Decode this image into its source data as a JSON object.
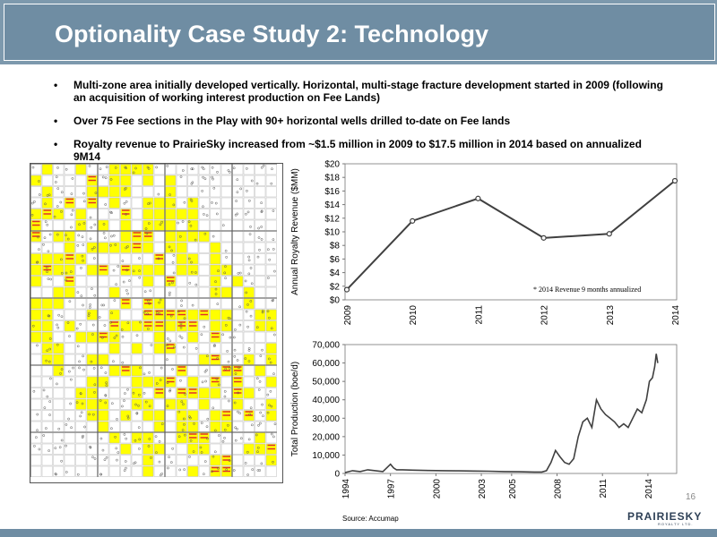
{
  "slide": {
    "title": "Optionality Case Study 2: Technology",
    "bullets": [
      "Multi-zone area initially developed vertically. Horizontal, multi-stage fracture development started in 2009 (following an acquisition of working interest production on Fee Lands)",
      "Over 75 Fee sections in the Play with 90+ horizontal wells drilled to-date on Fee lands",
      "Royalty revenue to PrairieSky increased from ~$1.5 million in 2009 to $17.5 million in 2014 based on annualized 9M14"
    ],
    "page_number": "16",
    "source": "Source: Accumap",
    "logo_text": "PRAIRIESKY",
    "logo_subtext": "ROYALTY LTD."
  },
  "colors": {
    "title_bar": "#6f8da3",
    "fee_land": "#ffff00",
    "hz_wells": "#e0302a",
    "line": "#404040"
  },
  "map": {
    "description_icons": [
      "well-symbol-icon",
      "section-grid-icon"
    ]
  },
  "chart_data": [
    {
      "type": "line",
      "x": [
        "2009",
        "2010",
        "2011",
        "2012",
        "2013",
        "2014"
      ],
      "series": [
        {
          "values": [
            1.5,
            11.6,
            14.9,
            9.1,
            9.7,
            17.5
          ]
        }
      ],
      "ylabel": "Annual Royalty Revenue ($MM)",
      "xlabel": "",
      "ylim": [
        0,
        20
      ],
      "yticks": [
        "$0",
        "$2",
        "$4",
        "$6",
        "$8",
        "$10",
        "$12",
        "$14",
        "$16",
        "$18",
        "$20"
      ],
      "annotation": "* 2014 Revenue 9 months annualized",
      "grid": false
    },
    {
      "type": "line",
      "xticks": [
        "1994",
        "1997",
        "2000",
        "2003",
        "2005",
        "2008",
        "2011",
        "2014"
      ],
      "x": [
        1994.0,
        1994.5,
        1995.0,
        1995.5,
        1996.0,
        1996.5,
        1997.0,
        1997.2,
        1997.4,
        1997.8,
        1998.5,
        1999.5,
        2000.5,
        2001.5,
        2002.5,
        2003.5,
        2004.5,
        2005.5,
        2006.5,
        2007.0,
        2007.3,
        2007.6,
        2007.9,
        2008.2,
        2008.5,
        2008.8,
        2009.1,
        2009.4,
        2009.7,
        2010.0,
        2010.3,
        2010.6,
        2010.9,
        2011.2,
        2011.5,
        2011.8,
        2012.1,
        2012.4,
        2012.7,
        2013.0,
        2013.3,
        2013.6,
        2013.9,
        2014.1,
        2014.3,
        2014.45,
        2014.55,
        2014.65
      ],
      "series": [
        {
          "values": [
            500,
            1500,
            1000,
            2000,
            1500,
            1000,
            5000,
            3000,
            2000,
            2000,
            1800,
            1600,
            1500,
            1400,
            1300,
            1200,
            1000,
            900,
            800,
            800,
            1500,
            6000,
            12500,
            9000,
            6000,
            5000,
            8000,
            20000,
            28000,
            30000,
            25000,
            40000,
            35000,
            32000,
            30000,
            28000,
            25000,
            27000,
            25000,
            30000,
            35000,
            33000,
            40000,
            50000,
            52000,
            58000,
            65000,
            60000
          ]
        }
      ],
      "ylabel": "Total Production (boe/d)",
      "xlabel": "",
      "ylim": [
        0,
        70000
      ],
      "yticks": [
        "0",
        "10,000",
        "20,000",
        "30,000",
        "40,000",
        "50,000",
        "60,000",
        "70,000"
      ],
      "grid": false
    }
  ]
}
